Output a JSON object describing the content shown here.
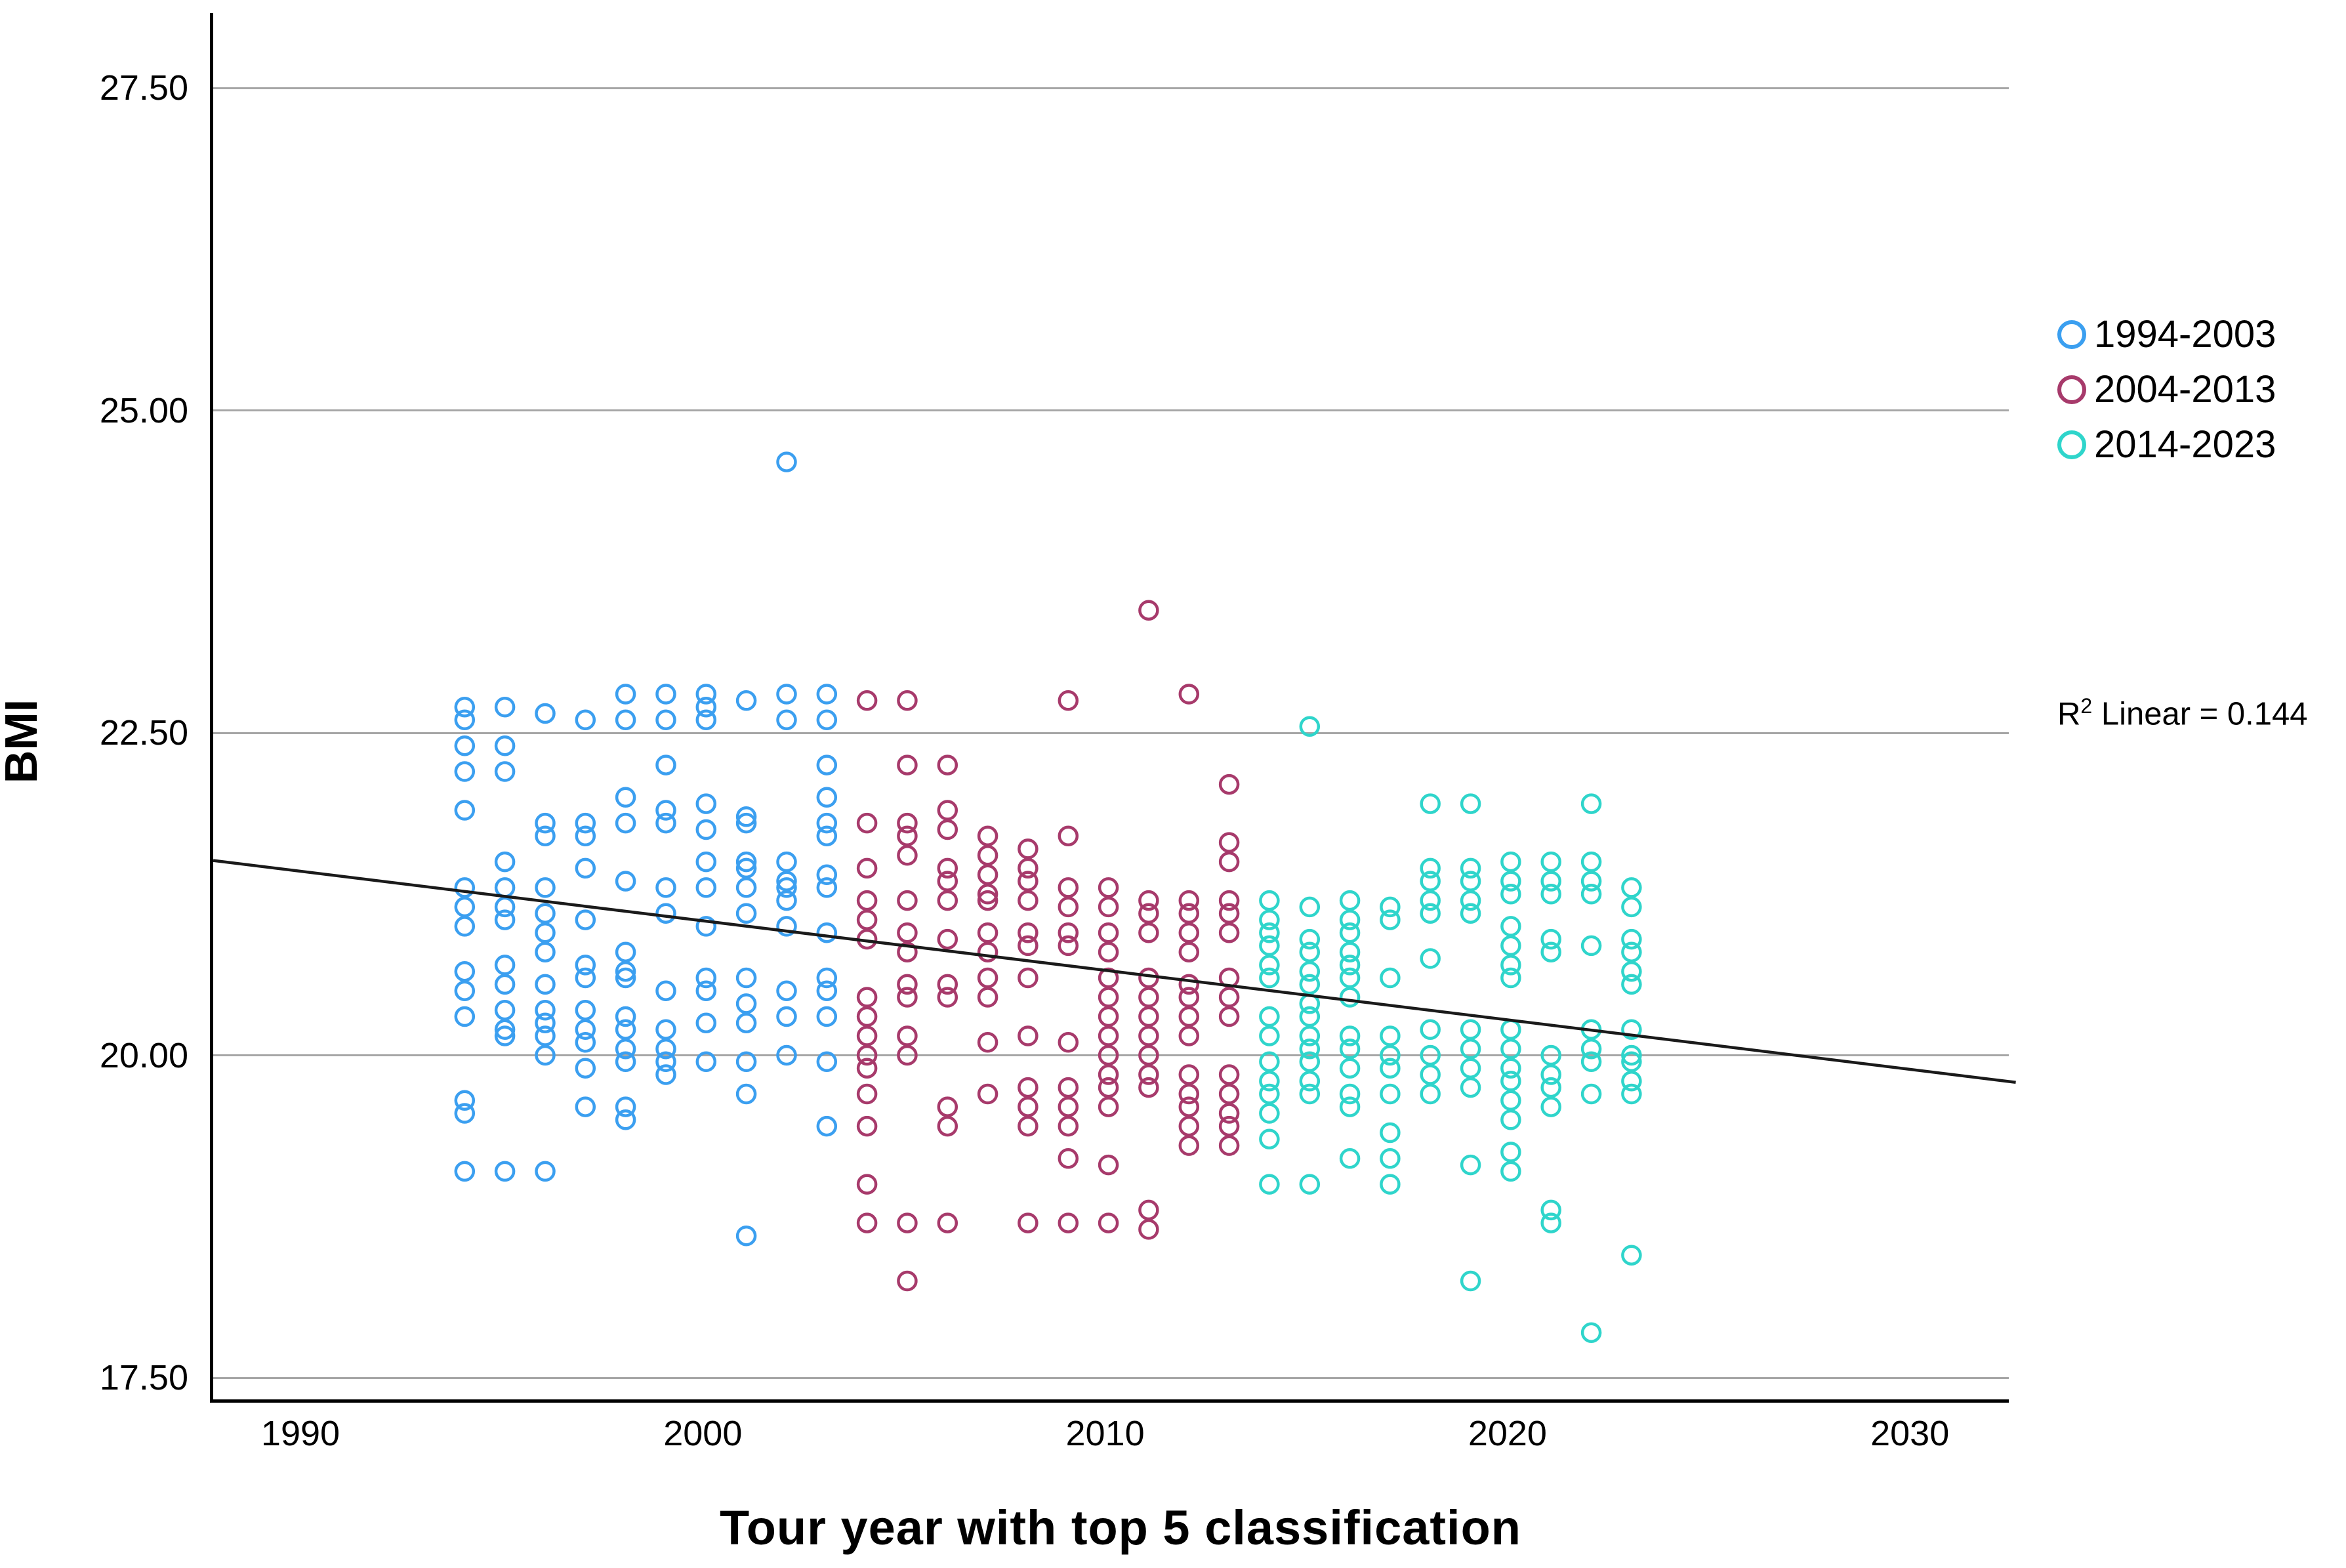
{
  "chart_data": {
    "type": "scatter",
    "xlabel": "Tour year with top 5 classification",
    "ylabel": "BMI",
    "x_ticks": [
      {
        "value": 1990,
        "label": "1990"
      },
      {
        "value": 2000,
        "label": "2000"
      },
      {
        "value": 2010,
        "label": "2010"
      },
      {
        "value": 2020,
        "label": "2020"
      },
      {
        "value": 2030,
        "label": "2030"
      }
    ],
    "y_ticks": [
      {
        "value": 27.5,
        "label": "27.50"
      },
      {
        "value": 25.0,
        "label": "25.00"
      },
      {
        "value": 22.5,
        "label": "22.50"
      },
      {
        "value": 20.0,
        "label": "20.00"
      },
      {
        "value": 17.5,
        "label": "17.50"
      }
    ],
    "xlim": [
      1987.75,
      2032.55
    ],
    "ylim": [
      17.33,
      28.08
    ],
    "grid": "horizontal",
    "legend_position": "right",
    "annotation": {
      "r_label": "R",
      "exponent": "2",
      "text": "Linear = 0.144"
    },
    "regression_line": {
      "x1": 1987.75,
      "y1": 21.51,
      "x2": 2032.55,
      "y2": 19.79,
      "color": "#1a1a1a"
    },
    "marker": {
      "shape": "open-circle",
      "radius_px": 13.5,
      "stroke_px": 4.5
    },
    "legend": [
      {
        "label": "1994-2003",
        "color": "#3b9ff0"
      },
      {
        "label": "2004-2013",
        "color": "#a73a6b"
      },
      {
        "label": "2014-2023",
        "color": "#2fd5cb"
      }
    ],
    "series": [
      {
        "name": "1994-2003",
        "color": "#3b9ff0",
        "points_by_year": [
          {
            "year": 1994,
            "bmi": [
              22.7,
              22.6,
              22.4,
              22.2,
              21.9,
              21.3,
              21.15,
              21.0,
              20.65,
              20.5,
              20.3,
              19.65,
              19.55,
              19.1
            ]
          },
          {
            "year": 1995,
            "bmi": [
              22.7,
              22.4,
              22.2,
              21.5,
              21.3,
              21.15,
              21.05,
              20.7,
              20.55,
              20.35,
              20.2,
              20.15,
              19.1
            ]
          },
          {
            "year": 1996,
            "bmi": [
              22.65,
              21.8,
              21.7,
              21.3,
              21.1,
              20.95,
              20.8,
              20.55,
              20.35,
              20.25,
              20.15,
              20.0,
              19.1
            ]
          },
          {
            "year": 1997,
            "bmi": [
              22.6,
              21.8,
              21.7,
              21.45,
              21.05,
              20.7,
              20.6,
              20.35,
              20.2,
              20.1,
              19.9,
              19.6
            ]
          },
          {
            "year": 1998,
            "bmi": [
              22.8,
              22.6,
              22.0,
              21.8,
              21.35,
              20.8,
              20.65,
              20.6,
              20.3,
              20.2,
              20.05,
              19.95,
              19.6,
              19.5
            ]
          },
          {
            "year": 1999,
            "bmi": [
              22.8,
              22.6,
              22.25,
              21.9,
              21.8,
              21.3,
              21.1,
              20.5,
              20.2,
              20.05,
              19.95,
              19.85
            ]
          },
          {
            "year": 2000,
            "bmi": [
              22.8,
              22.7,
              22.6,
              21.95,
              21.75,
              21.5,
              21.3,
              21.0,
              20.6,
              20.5,
              20.25,
              19.95
            ]
          },
          {
            "year": 2001,
            "bmi": [
              22.75,
              21.85,
              21.8,
              21.5,
              21.45,
              21.3,
              21.1,
              20.6,
              20.4,
              20.25,
              19.95,
              19.7,
              18.6
            ]
          },
          {
            "year": 2002,
            "bmi": [
              24.6,
              22.8,
              22.6,
              21.5,
              21.35,
              21.3,
              21.2,
              21.0,
              20.5,
              20.3,
              20.0
            ]
          },
          {
            "year": 2003,
            "bmi": [
              22.8,
              22.6,
              22.25,
              22.0,
              21.8,
              21.7,
              21.4,
              21.3,
              20.95,
              20.6,
              20.5,
              20.3,
              19.95,
              19.45
            ]
          }
        ]
      },
      {
        "name": "2004-2013",
        "color": "#a73a6b",
        "points_by_year": [
          {
            "year": 2004,
            "bmi": [
              22.75,
              21.8,
              21.45,
              21.2,
              21.05,
              20.9,
              20.45,
              20.3,
              20.15,
              20.0,
              19.9,
              19.7,
              19.45,
              19.0,
              18.7
            ]
          },
          {
            "year": 2005,
            "bmi": [
              22.75,
              22.25,
              21.8,
              21.7,
              21.55,
              21.2,
              20.95,
              20.8,
              20.55,
              20.45,
              20.15,
              20.0,
              18.7,
              18.25
            ]
          },
          {
            "year": 2006,
            "bmi": [
              22.25,
              21.9,
              21.75,
              21.45,
              21.35,
              21.2,
              20.9,
              20.55,
              20.45,
              19.6,
              19.45,
              18.7
            ]
          },
          {
            "year": 2007,
            "bmi": [
              21.7,
              21.55,
              21.4,
              21.25,
              21.2,
              20.95,
              20.8,
              20.6,
              20.45,
              20.1,
              19.7
            ]
          },
          {
            "year": 2008,
            "bmi": [
              21.6,
              21.45,
              21.35,
              21.2,
              20.95,
              20.85,
              20.6,
              20.15,
              19.75,
              19.6,
              19.45,
              18.7
            ]
          },
          {
            "year": 2009,
            "bmi": [
              22.75,
              21.7,
              21.3,
              21.15,
              20.95,
              20.85,
              20.1,
              19.75,
              19.6,
              19.45,
              19.2,
              18.7
            ]
          },
          {
            "year": 2010,
            "bmi": [
              21.3,
              21.15,
              20.95,
              20.8,
              20.6,
              20.45,
              20.3,
              20.15,
              20.0,
              19.85,
              19.75,
              19.6,
              19.15,
              18.7
            ]
          },
          {
            "year": 2011,
            "bmi": [
              23.45,
              21.2,
              21.1,
              20.95,
              20.6,
              20.45,
              20.3,
              20.15,
              20.0,
              19.85,
              19.75,
              18.8,
              18.65
            ]
          },
          {
            "year": 2012,
            "bmi": [
              22.8,
              21.2,
              21.1,
              20.95,
              20.8,
              20.55,
              20.45,
              20.3,
              20.15,
              19.85,
              19.7,
              19.6,
              19.45,
              19.3
            ]
          },
          {
            "year": 2013,
            "bmi": [
              22.1,
              21.65,
              21.5,
              21.2,
              21.1,
              20.95,
              20.6,
              20.45,
              20.3,
              19.85,
              19.7,
              19.55,
              19.45,
              19.3
            ]
          }
        ]
      },
      {
        "name": "2014-2023",
        "color": "#2fd5cb",
        "points_by_year": [
          {
            "year": 2014,
            "bmi": [
              21.2,
              21.05,
              20.95,
              20.85,
              20.7,
              20.6,
              20.3,
              20.15,
              19.95,
              19.8,
              19.7,
              19.55,
              19.35,
              19.0
            ]
          },
          {
            "year": 2015,
            "bmi": [
              22.55,
              21.15,
              20.9,
              20.8,
              20.65,
              20.55,
              20.4,
              20.3,
              20.15,
              20.05,
              19.95,
              19.8,
              19.7,
              19.0
            ]
          },
          {
            "year": 2016,
            "bmi": [
              21.2,
              21.05,
              20.95,
              20.8,
              20.7,
              20.6,
              20.45,
              20.15,
              20.05,
              19.9,
              19.7,
              19.6,
              19.2
            ]
          },
          {
            "year": 2017,
            "bmi": [
              21.15,
              21.05,
              20.6,
              20.15,
              20.0,
              19.9,
              19.7,
              19.4,
              19.2,
              19.0
            ]
          },
          {
            "year": 2018,
            "bmi": [
              21.95,
              21.45,
              21.35,
              21.2,
              21.1,
              20.75,
              20.2,
              20.0,
              19.85,
              19.7
            ]
          },
          {
            "year": 2019,
            "bmi": [
              21.95,
              21.45,
              21.35,
              21.2,
              21.1,
              20.2,
              20.05,
              19.9,
              19.75,
              19.15,
              18.25
            ]
          },
          {
            "year": 2020,
            "bmi": [
              21.5,
              21.35,
              21.25,
              21.0,
              20.85,
              20.7,
              20.6,
              20.2,
              20.05,
              19.9,
              19.8,
              19.65,
              19.5,
              19.25,
              19.1
            ]
          },
          {
            "year": 2021,
            "bmi": [
              21.5,
              21.35,
              21.25,
              20.9,
              20.8,
              20.0,
              19.85,
              19.75,
              19.6,
              18.8,
              18.7
            ]
          },
          {
            "year": 2022,
            "bmi": [
              21.95,
              21.5,
              21.35,
              21.25,
              20.85,
              20.2,
              20.05,
              19.95,
              19.7,
              17.85
            ]
          },
          {
            "year": 2023,
            "bmi": [
              21.3,
              21.15,
              20.9,
              20.8,
              20.65,
              20.55,
              20.2,
              20.0,
              19.95,
              19.8,
              19.7,
              18.45
            ]
          }
        ]
      }
    ]
  }
}
